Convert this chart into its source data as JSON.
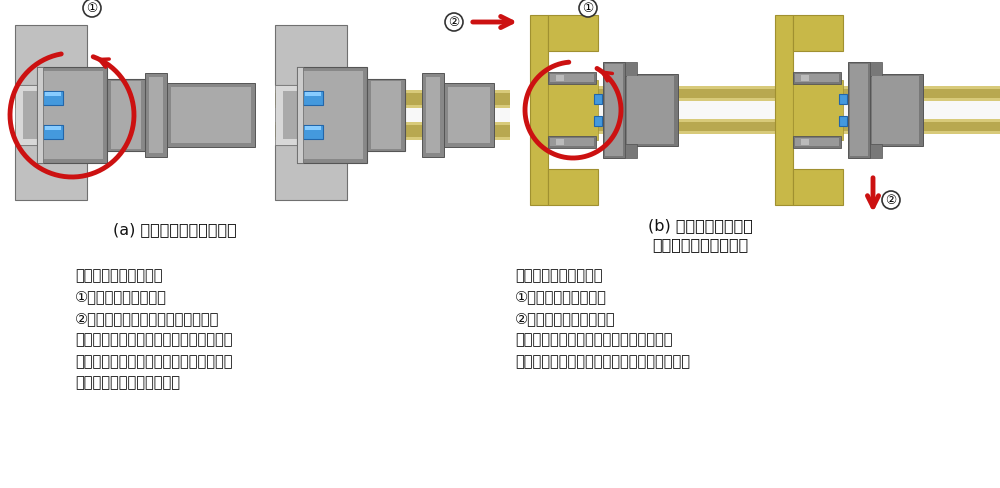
{
  "bg_color": "#ffffff",
  "fig_width": 10.0,
  "fig_height": 4.88,
  "dpi": 100,
  "label_a": "(a) コーン＆スレッド継手",
  "label_b_line1": "(b) 超高圧水素配管用",
  "label_b_line2": "メタルガスケット継手",
  "text_left": [
    "機器を取り外すために",
    "①ナットを取り外す。",
    "②チューブを機器本体から引き抜く",
    "必要があり、メンテナンス機器１箇所を",
    "取り外すために、それ以外の複数個所の",
    "配管を分解する必要がある"
  ],
  "text_right": [
    "機器を取り外すために",
    "①ナットを取り外す。",
    "②機器を横に取り外す。",
    "チューブを引き抜く必要がなく、メンテ",
    "ナンス機器１箇所だけを取外すことが可能。"
  ],
  "wall_color": "#c0c0c0",
  "wall_edge": "#707070",
  "wall_inner": "#d8d8d8",
  "nut_dark": "#888888",
  "nut_mid": "#aaaaaa",
  "nut_light": "#cccccc",
  "tube_color": "#d8ca7a",
  "tube_shadow": "#b8a850",
  "tube_light": "#f0e8a0",
  "tube_white": "#f8f8f8",
  "blue_seal": "#4499dd",
  "blue_seal_dark": "#2266aa",
  "red": "#cc1111",
  "brass": "#c8b848",
  "brass_dark": "#a09030",
  "brass_light": "#e0d070",
  "metal_dark": "#787878",
  "metal_mid": "#999999",
  "metal_light": "#bbbbbb"
}
